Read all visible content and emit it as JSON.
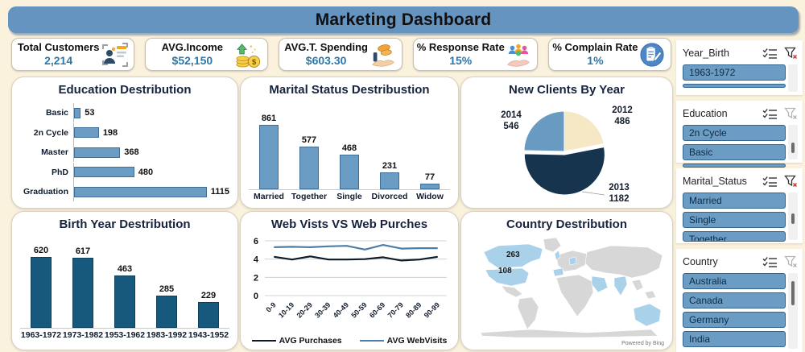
{
  "title": "Marketing Dashboard",
  "colors": {
    "page_bg": "#fbf2de",
    "titlebar_bg": "#6594c0",
    "kpi_value": "#2f77a8",
    "bar_blue": "#6b9cc3",
    "bar_blue_border": "#3f6e96",
    "bar_dark": "#17597c",
    "bar_dark_border": "#0e3f5c",
    "pie_2012": "#f6e7c5",
    "pie_2013": "#16344e",
    "pie_2014": "#699bc2",
    "line_purchases": "#0d1b2a",
    "line_webvisits": "#4c7ea8",
    "slicer_item_bg": "#6b9cc3",
    "map_land": "#d7d7d7",
    "map_highlight": "#a9d2ea"
  },
  "kpis": [
    {
      "label": "Total Customers",
      "value": "2,214",
      "icon": "id-card-icon"
    },
    {
      "label": "AVG.Income",
      "value": "$52,150",
      "icon": "coins-up-icon"
    },
    {
      "label": "AVG.T. Spending",
      "value": "$603.30",
      "icon": "hand-coins-icon"
    },
    {
      "label": "% Response Rate",
      "value": "15%",
      "icon": "people-hand-icon"
    },
    {
      "label": "% Complain Rate",
      "value": "1%",
      "icon": "clipboard-icon"
    }
  ],
  "chart_data": [
    {
      "id": "education",
      "type": "bar",
      "orientation": "horizontal",
      "title": "Education Destribution",
      "categories": [
        "Basic",
        "2n Cycle",
        "Master",
        "PhD",
        "Graduation"
      ],
      "values": [
        53,
        198,
        368,
        480,
        1115
      ],
      "xlim": [
        0,
        1240
      ]
    },
    {
      "id": "marital_status",
      "type": "bar",
      "orientation": "vertical",
      "title": "Marital Status Destribustion",
      "categories": [
        "Married",
        "Together",
        "Single",
        "Divorced",
        "Widow"
      ],
      "values": [
        861,
        577,
        468,
        231,
        77
      ],
      "ylim": [
        0,
        950
      ]
    },
    {
      "id": "new_clients_by_year",
      "type": "pie",
      "title": "New Clients By Year",
      "labels": [
        "2012",
        "2013",
        "2014"
      ],
      "values": [
        486,
        1182,
        546
      ],
      "exploded_slice": "2013"
    },
    {
      "id": "birth_year",
      "type": "bar",
      "orientation": "vertical",
      "title": "Birth Year Destribution",
      "categories": [
        "1963-1972",
        "1973-1982",
        "1953-1962",
        "1983-1992",
        "1943-1952"
      ],
      "values": [
        620,
        617,
        463,
        285,
        229
      ],
      "ylim": [
        0,
        680
      ]
    },
    {
      "id": "web_visits_vs_purchases",
      "type": "line",
      "title": "Web Vists VS Web Purches",
      "categories": [
        "0-9",
        "10-19",
        "20-29",
        "30-39",
        "40-49",
        "50-59",
        "60-69",
        "70-79",
        "80-89",
        "90-99"
      ],
      "series": [
        {
          "name": "AVG Purchases",
          "values": [
            4.25,
            3.95,
            4.3,
            3.95,
            3.95,
            4.0,
            4.2,
            3.85,
            3.95,
            4.25
          ]
        },
        {
          "name": "AVG WebVisits",
          "values": [
            5.3,
            5.35,
            5.3,
            5.4,
            5.45,
            5.05,
            5.55,
            5.15,
            5.2,
            5.2
          ]
        }
      ],
      "ylim": [
        0,
        6
      ],
      "yticks": [
        0,
        2,
        4,
        6
      ],
      "legend_position": "bottom"
    },
    {
      "id": "country_map",
      "type": "map",
      "title": "Country Destribution",
      "highlighted_countries": [
        "Canada",
        "USA",
        "Spain",
        "Germany",
        "Saudi Arabia",
        "India",
        "Australia"
      ],
      "data_labels": [
        {
          "text": "263",
          "country": "Canada"
        },
        {
          "text": "108",
          "country": "USA"
        }
      ],
      "attribution": "Powered by Bing"
    }
  ],
  "slicers": [
    {
      "title": "Year_Birth",
      "clear_filter_active": true,
      "items": [
        "1963-1972"
      ],
      "partial_next_item": true,
      "scroll_thumb": false
    },
    {
      "title": "Education",
      "clear_filter_active": false,
      "items": [
        "2n Cycle",
        "Basic"
      ],
      "partial_next_item": true,
      "scroll_thumb": true
    },
    {
      "title": "Marital_Status",
      "clear_filter_active": true,
      "items": [
        "Married",
        "Single",
        "Together"
      ],
      "last_item_partial": true,
      "scroll_thumb": true
    },
    {
      "title": "Country",
      "clear_filter_active": false,
      "items": [
        "Australia",
        "Canada",
        "Germany",
        "India"
      ],
      "scroll_thumb": true
    }
  ]
}
